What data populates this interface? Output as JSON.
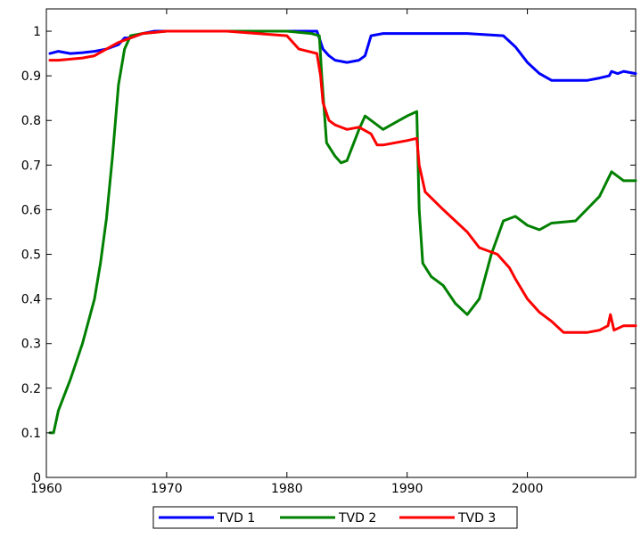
{
  "chart_data": {
    "type": "line",
    "title": "",
    "xlabel": "",
    "ylabel": "",
    "xlim": [
      1960,
      2009
    ],
    "ylim": [
      0,
      1.05
    ],
    "xticks": [
      1960,
      1970,
      1980,
      1990,
      2000
    ],
    "xtick_labels": [
      "1960",
      "1970",
      "1980",
      "1990",
      "2000"
    ],
    "yticks": [
      0,
      0.1,
      0.2,
      0.3,
      0.4,
      0.5,
      0.6,
      0.7,
      0.8,
      0.9,
      1
    ],
    "ytick_labels": [
      "0",
      "0.1",
      "0.2",
      "0.3",
      "0.4",
      "0.5",
      "0.6",
      "0.7",
      "0.8",
      "0.9",
      "1"
    ],
    "grid": false,
    "legend_position": "bottom",
    "series": [
      {
        "name": "TVD 1",
        "color": "#0000ff",
        "x": [
          1960.3,
          1961,
          1962,
          1963,
          1964,
          1965,
          1966,
          1966.5,
          1967,
          1968,
          1969,
          1970,
          1975,
          1980,
          1982.5,
          1983,
          1983.5,
          1984,
          1985,
          1986,
          1986.5,
          1987,
          1988,
          1990,
          1995,
          1998,
          1999,
          2000,
          2001,
          2002,
          2003,
          2005,
          2006,
          2006.8,
          2007,
          2007.5,
          2008,
          2009
        ],
        "y": [
          0.95,
          0.955,
          0.95,
          0.952,
          0.955,
          0.96,
          0.97,
          0.985,
          0.985,
          0.995,
          1.0,
          1.0,
          1.0,
          1.0,
          1.0,
          0.96,
          0.945,
          0.935,
          0.93,
          0.935,
          0.945,
          0.99,
          0.995,
          0.995,
          0.995,
          0.99,
          0.965,
          0.93,
          0.905,
          0.89,
          0.89,
          0.89,
          0.895,
          0.9,
          0.91,
          0.905,
          0.91,
          0.905
        ]
      },
      {
        "name": "TVD 2",
        "color": "#008000",
        "x": [
          1960.3,
          1960.6,
          1961,
          1962,
          1963,
          1964,
          1964.5,
          1965,
          1965.5,
          1966,
          1966.5,
          1967,
          1968,
          1970,
          1975,
          1980,
          1982,
          1982.7,
          1982.9,
          1983.3,
          1984,
          1984.5,
          1985,
          1986,
          1986.5,
          1987,
          1988,
          1989,
          1990,
          1990.8,
          1991,
          1991.3,
          1992,
          1993,
          1994,
          1995,
          1996,
          1997,
          1998,
          1999,
          2000,
          2001,
          2002,
          2004,
          2006,
          2007,
          2008,
          2009
        ],
        "y": [
          0.1,
          0.1,
          0.15,
          0.22,
          0.3,
          0.4,
          0.48,
          0.58,
          0.72,
          0.88,
          0.96,
          0.99,
          0.995,
          1.0,
          1.0,
          1.0,
          0.995,
          0.99,
          0.9,
          0.75,
          0.72,
          0.705,
          0.71,
          0.78,
          0.81,
          0.8,
          0.78,
          0.795,
          0.81,
          0.82,
          0.6,
          0.48,
          0.45,
          0.43,
          0.39,
          0.365,
          0.4,
          0.5,
          0.575,
          0.585,
          0.565,
          0.555,
          0.57,
          0.575,
          0.63,
          0.685,
          0.665,
          0.665
        ]
      },
      {
        "name": "TVD 3",
        "color": "#ff0000",
        "x": [
          1960.3,
          1961,
          1963,
          1964,
          1965,
          1966,
          1967,
          1968,
          1970,
          1975,
          1980,
          1981,
          1982.5,
          1982.8,
          1983,
          1983.5,
          1984,
          1985,
          1986,
          1987,
          1987.5,
          1988,
          1990,
          1990.8,
          1991,
          1991.5,
          1993,
          1995,
          1996,
          1997,
          1997.5,
          1998.5,
          1999,
          2000,
          2001,
          2002,
          2003,
          2005,
          2006,
          2006.7,
          2006.9,
          2007.2,
          2008,
          2009
        ],
        "y": [
          0.935,
          0.935,
          0.94,
          0.945,
          0.96,
          0.975,
          0.985,
          0.995,
          1.0,
          1.0,
          0.99,
          0.96,
          0.95,
          0.9,
          0.84,
          0.8,
          0.79,
          0.78,
          0.785,
          0.77,
          0.745,
          0.745,
          0.755,
          0.76,
          0.7,
          0.64,
          0.6,
          0.55,
          0.515,
          0.505,
          0.5,
          0.47,
          0.445,
          0.4,
          0.37,
          0.35,
          0.325,
          0.325,
          0.33,
          0.34,
          0.365,
          0.33,
          0.34,
          0.34
        ]
      }
    ]
  }
}
